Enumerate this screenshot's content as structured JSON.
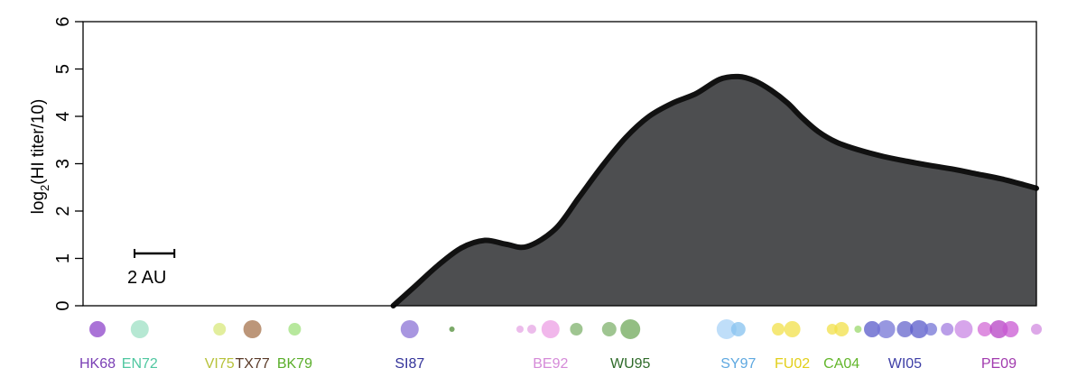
{
  "chart_data": {
    "type": "area",
    "ylabel_main": "log",
    "ylabel_sub": "2",
    "ylabel_rest": "(HI titer/10)",
    "ylim": [
      0,
      6
    ],
    "yticks": [
      "0",
      "1",
      "2",
      "3",
      "4",
      "5",
      "6"
    ],
    "xlim": [
      0,
      40
    ],
    "fill_color": "#4d4e50",
    "line_color": "#111111",
    "series": [
      {
        "x": [
          12.6,
          13.5,
          14.5,
          15.5,
          16.5,
          17.4,
          18.3,
          19.5,
          20.5,
          21.5,
          22.5,
          23.5,
          24.5,
          25.5,
          26.5,
          27.3,
          28.0,
          28.7,
          29.4,
          30.0,
          30.7,
          31.5,
          32.5,
          33.5,
          34.5,
          35.5,
          36.5,
          37.5,
          38.5,
          39.5,
          40.0
        ],
        "y": [
          0,
          0.4,
          0.85,
          1.22,
          1.38,
          1.3,
          1.25,
          1.62,
          2.28,
          2.95,
          3.55,
          4.0,
          4.28,
          4.48,
          4.78,
          4.84,
          4.75,
          4.55,
          4.28,
          3.98,
          3.68,
          3.45,
          3.28,
          3.15,
          3.05,
          2.96,
          2.88,
          2.78,
          2.68,
          2.55,
          2.48
        ]
      }
    ],
    "scale_bar": {
      "label": "2 AU",
      "length_au": 2
    },
    "antigen_dots": [
      {
        "x": 0.0,
        "r": 9,
        "color": "#8e44c9"
      },
      {
        "x": 1.8,
        "r": 10,
        "color": "#9ee0c4"
      },
      {
        "x": 5.2,
        "r": 7,
        "color": "#d8e87c"
      },
      {
        "x": 6.6,
        "r": 10,
        "color": "#a6734c"
      },
      {
        "x": 8.4,
        "r": 7,
        "color": "#9fe07c"
      },
      {
        "x": 13.3,
        "r": 10,
        "color": "#8b73d6"
      },
      {
        "x": 15.1,
        "r": 3,
        "color": "#4f8c36"
      },
      {
        "x": 18.0,
        "r": 4,
        "color": "#e6a5e4"
      },
      {
        "x": 18.5,
        "r": 5,
        "color": "#e6a5e4"
      },
      {
        "x": 19.3,
        "r": 10,
        "color": "#ec9fe4"
      },
      {
        "x": 20.4,
        "r": 7,
        "color": "#7fb26c"
      },
      {
        "x": 21.8,
        "r": 8,
        "color": "#7fb26c"
      },
      {
        "x": 22.7,
        "r": 11,
        "color": "#6fa85a"
      },
      {
        "x": 26.8,
        "r": 11,
        "color": "#a9d3f7"
      },
      {
        "x": 27.3,
        "r": 8,
        "color": "#86c1ef"
      },
      {
        "x": 29.0,
        "r": 7,
        "color": "#f1e04a"
      },
      {
        "x": 29.6,
        "r": 9,
        "color": "#f1e04a"
      },
      {
        "x": 31.3,
        "r": 6,
        "color": "#f1e04a"
      },
      {
        "x": 31.7,
        "r": 8,
        "color": "#f1e04a"
      },
      {
        "x": 32.4,
        "r": 4,
        "color": "#9bd86c"
      },
      {
        "x": 33.0,
        "r": 9,
        "color": "#5a5bc9"
      },
      {
        "x": 33.6,
        "r": 10,
        "color": "#7474d6"
      },
      {
        "x": 34.4,
        "r": 9,
        "color": "#6566cc"
      },
      {
        "x": 35.0,
        "r": 10,
        "color": "#5a5bc9"
      },
      {
        "x": 35.5,
        "r": 7,
        "color": "#7474d6"
      },
      {
        "x": 36.2,
        "r": 7,
        "color": "#a37ee0"
      },
      {
        "x": 36.9,
        "r": 10,
        "color": "#c987e4"
      },
      {
        "x": 37.8,
        "r": 8,
        "color": "#d36ad6"
      },
      {
        "x": 38.4,
        "r": 10,
        "color": "#b642c4"
      },
      {
        "x": 38.9,
        "r": 9,
        "color": "#c95ad3"
      },
      {
        "x": 40.0,
        "r": 6,
        "color": "#d28be0"
      }
    ],
    "antigen_labels": [
      {
        "text": "HK68",
        "x": 0.0,
        "color": "#7a3fb5"
      },
      {
        "text": "EN72",
        "x": 1.8,
        "color": "#4fc7a0"
      },
      {
        "text": "VI75",
        "x": 5.2,
        "color": "#b7c23a"
      },
      {
        "text": "TX77",
        "x": 6.6,
        "color": "#5a3a28"
      },
      {
        "text": "BK79",
        "x": 8.4,
        "color": "#5aae2a"
      },
      {
        "text": "SI87",
        "x": 13.3,
        "color": "#33339a"
      },
      {
        "text": "BE92",
        "x": 19.3,
        "color": "#d58ad8"
      },
      {
        "text": "WU95",
        "x": 22.7,
        "color": "#2f6b2a"
      },
      {
        "text": "SY97",
        "x": 27.3,
        "color": "#5ea8e0"
      },
      {
        "text": "FU02",
        "x": 29.6,
        "color": "#e2cf1a"
      },
      {
        "text": "CA04",
        "x": 31.7,
        "color": "#62b62a"
      },
      {
        "text": "WI05",
        "x": 34.4,
        "color": "#3e3fa6"
      },
      {
        "text": "PE09",
        "x": 38.4,
        "color": "#a13aae"
      }
    ]
  }
}
